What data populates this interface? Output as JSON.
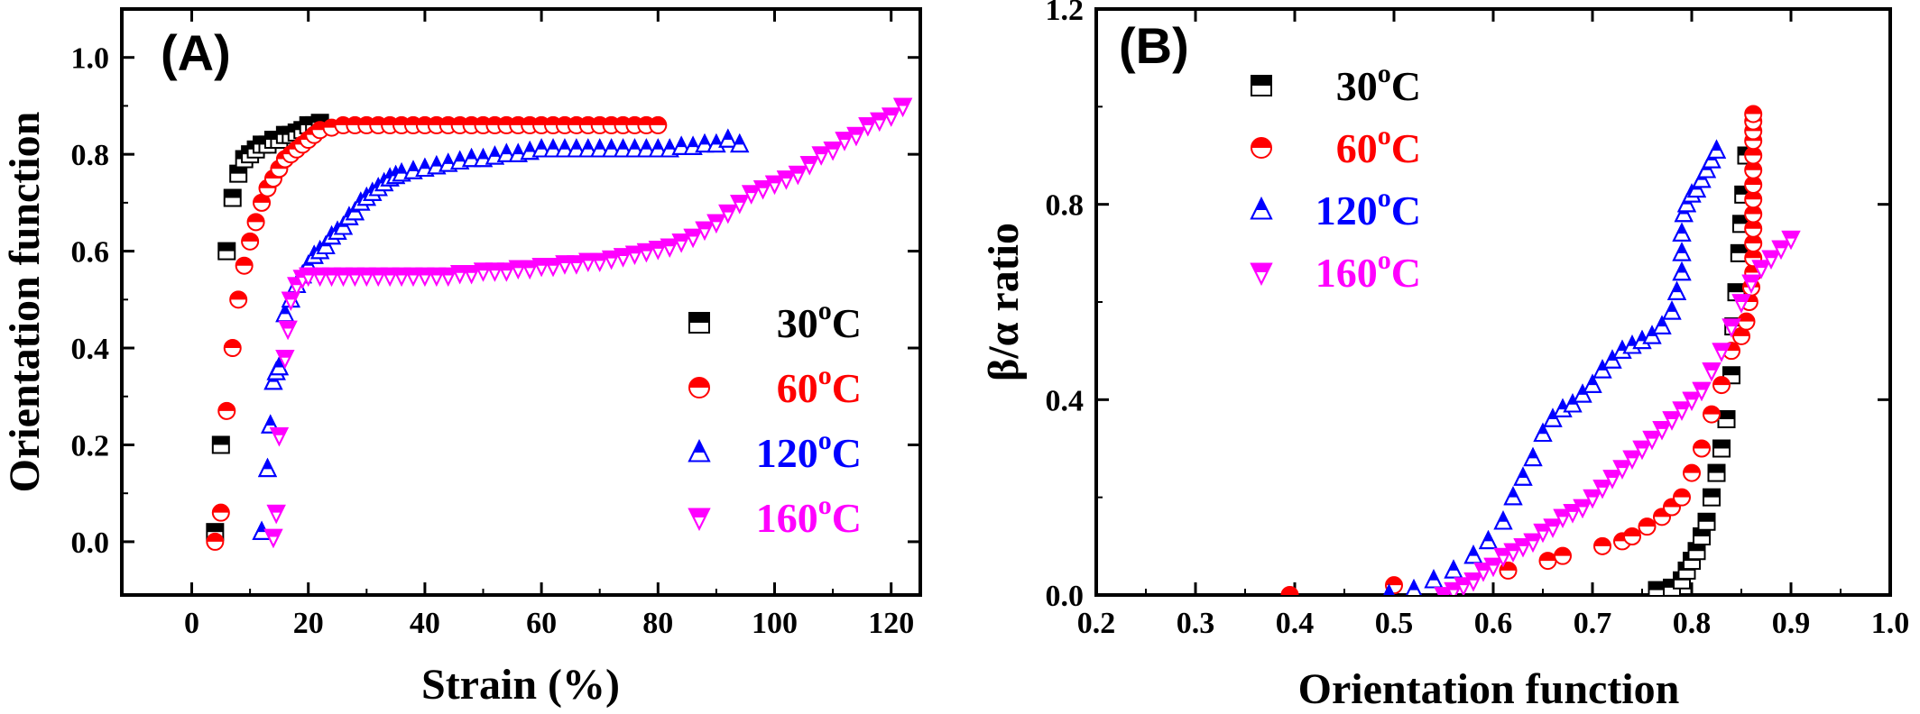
{
  "chart_data": [
    {
      "type": "scatter",
      "panel_label": "(A)",
      "xlabel": "Strain (%)",
      "ylabel": "Orientation function",
      "xlim": [
        -12,
        125
      ],
      "ylim": [
        -0.11,
        1.1
      ],
      "xticks": [
        0,
        20,
        40,
        60,
        80,
        100,
        120
      ],
      "yticks": [
        0.0,
        0.2,
        0.4,
        0.6,
        0.8,
        1.0
      ],
      "xtick_labels": [
        "0",
        "20",
        "40",
        "60",
        "80",
        "100",
        "120"
      ],
      "ytick_labels": [
        "0.0",
        "0.2",
        "0.4",
        "0.6",
        "0.8",
        "1.0"
      ],
      "legend": "right-middle",
      "series": [
        {
          "name": "30°C",
          "legend_temp": "30",
          "legend_unit": "C",
          "marker": "square-half-top",
          "color": "#000000",
          "x": [
            4,
            5,
            6,
            7,
            8,
            9,
            10,
            11,
            12,
            13,
            14,
            15,
            16,
            17,
            18,
            19,
            20,
            21,
            22
          ],
          "y": [
            0.02,
            0.2,
            0.6,
            0.71,
            0.76,
            0.79,
            0.8,
            0.81,
            0.82,
            0.82,
            0.83,
            0.83,
            0.84,
            0.84,
            0.845,
            0.85,
            0.86,
            0.86,
            0.865
          ]
        },
        {
          "name": "60°C",
          "legend_temp": "60",
          "legend_unit": "C",
          "marker": "circle-half-top",
          "color": "#ff0000",
          "x": [
            4,
            5,
            6,
            7,
            8,
            9,
            10,
            11,
            12,
            13,
            14,
            15,
            16,
            17,
            18,
            19,
            20,
            21,
            22,
            24,
            26,
            28,
            30,
            32,
            34,
            36,
            38,
            40,
            42,
            44,
            46,
            48,
            50,
            52,
            54,
            56,
            58,
            60,
            62,
            64,
            66,
            68,
            70,
            72,
            74,
            76,
            78,
            80
          ],
          "y": [
            0.0,
            0.06,
            0.27,
            0.4,
            0.5,
            0.57,
            0.62,
            0.66,
            0.7,
            0.73,
            0.75,
            0.77,
            0.79,
            0.8,
            0.81,
            0.82,
            0.83,
            0.84,
            0.85,
            0.855,
            0.86,
            0.86,
            0.86,
            0.86,
            0.86,
            0.86,
            0.86,
            0.86,
            0.86,
            0.86,
            0.86,
            0.86,
            0.86,
            0.86,
            0.86,
            0.86,
            0.86,
            0.86,
            0.86,
            0.86,
            0.86,
            0.86,
            0.86,
            0.86,
            0.86,
            0.86,
            0.86,
            0.86
          ]
        },
        {
          "name": "120°C",
          "legend_temp": "120",
          "legend_unit": "C",
          "marker": "triangle-up-half",
          "color": "#0000ff",
          "x": [
            12,
            13,
            13.5,
            14,
            14.5,
            15,
            16,
            17,
            18,
            19,
            20,
            21,
            22,
            23,
            24,
            25,
            26,
            27,
            28,
            29,
            30,
            31,
            32,
            33,
            34,
            35,
            36,
            38,
            40,
            42,
            44,
            46,
            48,
            50,
            52,
            54,
            56,
            58,
            60,
            62,
            64,
            66,
            68,
            70,
            72,
            74,
            76,
            78,
            80,
            82,
            84,
            86,
            88,
            90,
            92,
            94
          ],
          "y": [
            0.02,
            0.15,
            0.24,
            0.33,
            0.35,
            0.36,
            0.47,
            0.5,
            0.53,
            0.55,
            0.57,
            0.59,
            0.6,
            0.61,
            0.63,
            0.64,
            0.65,
            0.67,
            0.68,
            0.7,
            0.71,
            0.72,
            0.73,
            0.74,
            0.75,
            0.755,
            0.76,
            0.765,
            0.77,
            0.775,
            0.78,
            0.785,
            0.79,
            0.79,
            0.795,
            0.8,
            0.8,
            0.805,
            0.81,
            0.81,
            0.81,
            0.81,
            0.81,
            0.81,
            0.81,
            0.81,
            0.81,
            0.81,
            0.81,
            0.81,
            0.815,
            0.815,
            0.82,
            0.82,
            0.83,
            0.82
          ]
        },
        {
          "name": "160°C",
          "legend_temp": "160",
          "legend_unit": "C",
          "marker": "triangle-down-half",
          "color": "#ff00ff",
          "x": [
            14,
            14.5,
            15,
            16,
            16.5,
            17,
            18,
            19,
            20,
            22,
            24,
            26,
            28,
            30,
            32,
            34,
            36,
            38,
            40,
            42,
            44,
            46,
            48,
            50,
            52,
            54,
            56,
            58,
            60,
            62,
            64,
            66,
            68,
            70,
            72,
            74,
            76,
            78,
            80,
            82,
            84,
            86,
            88,
            90,
            92,
            94,
            96,
            98,
            100,
            102,
            104,
            106,
            108,
            110,
            112,
            114,
            116,
            118,
            120,
            122
          ],
          "y": [
            0.01,
            0.06,
            0.22,
            0.38,
            0.44,
            0.5,
            0.53,
            0.545,
            0.55,
            0.55,
            0.55,
            0.55,
            0.55,
            0.55,
            0.55,
            0.55,
            0.55,
            0.55,
            0.55,
            0.55,
            0.55,
            0.555,
            0.555,
            0.56,
            0.56,
            0.56,
            0.565,
            0.565,
            0.57,
            0.57,
            0.575,
            0.575,
            0.58,
            0.58,
            0.585,
            0.59,
            0.595,
            0.6,
            0.605,
            0.61,
            0.62,
            0.63,
            0.645,
            0.66,
            0.68,
            0.7,
            0.72,
            0.73,
            0.74,
            0.75,
            0.76,
            0.78,
            0.8,
            0.81,
            0.83,
            0.84,
            0.86,
            0.87,
            0.88,
            0.9
          ]
        }
      ]
    },
    {
      "type": "scatter",
      "panel_label": "(B)",
      "xlabel": "Orientation function",
      "ylabel": "β/α ratio",
      "xlim": [
        0.2,
        1.0
      ],
      "ylim": [
        0.0,
        1.2
      ],
      "xticks": [
        0.2,
        0.3,
        0.4,
        0.5,
        0.6,
        0.7,
        0.8,
        0.9,
        1.0
      ],
      "yticks": [
        0.0,
        0.4,
        0.8,
        1.2
      ],
      "xtick_labels": [
        "0.2",
        "0.3",
        "0.4",
        "0.5",
        "0.6",
        "0.7",
        "0.8",
        "0.9",
        "1.0"
      ],
      "ytick_labels": [
        "0.0",
        "0.4",
        "0.8",
        "1.2"
      ],
      "legend": "top-left",
      "series": [
        {
          "name": "30°C",
          "legend_temp": "30",
          "legend_unit": "C",
          "marker": "square-half-top",
          "color": "#000000",
          "x": [
            0.765,
            0.78,
            0.79,
            0.795,
            0.8,
            0.805,
            0.81,
            0.815,
            0.82,
            0.825,
            0.83,
            0.835,
            0.84,
            0.842,
            0.845,
            0.848,
            0.85,
            0.852,
            0.855
          ],
          "y": [
            0.01,
            0.015,
            0.03,
            0.05,
            0.07,
            0.09,
            0.12,
            0.15,
            0.2,
            0.25,
            0.3,
            0.36,
            0.45,
            0.55,
            0.62,
            0.7,
            0.76,
            0.82,
            0.9
          ]
        },
        {
          "name": "60°C",
          "legend_temp": "60",
          "legend_unit": "C",
          "marker": "circle-half-top",
          "color": "#ff0000",
          "x": [
            0.395,
            0.5,
            0.615,
            0.655,
            0.67,
            0.71,
            0.73,
            0.74,
            0.755,
            0.77,
            0.78,
            0.79,
            0.8,
            0.81,
            0.82,
            0.83,
            0.84,
            0.85,
            0.855,
            0.858,
            0.86,
            0.862,
            0.862,
            0.862,
            0.862,
            0.862,
            0.862,
            0.862,
            0.862,
            0.862,
            0.862,
            0.862,
            0.862,
            0.862
          ],
          "y": [
            0.0,
            0.02,
            0.05,
            0.07,
            0.08,
            0.1,
            0.11,
            0.12,
            0.14,
            0.16,
            0.18,
            0.2,
            0.25,
            0.3,
            0.37,
            0.43,
            0.5,
            0.53,
            0.56,
            0.6,
            0.63,
            0.66,
            0.69,
            0.72,
            0.75,
            0.78,
            0.81,
            0.84,
            0.87,
            0.9,
            0.93,
            0.95,
            0.97,
            0.985
          ]
        },
        {
          "name": "120°C",
          "legend_temp": "120",
          "legend_unit": "C",
          "marker": "triangle-up-half",
          "color": "#0000ff",
          "x": [
            0.495,
            0.52,
            0.54,
            0.56,
            0.58,
            0.595,
            0.61,
            0.62,
            0.63,
            0.64,
            0.65,
            0.66,
            0.67,
            0.68,
            0.69,
            0.7,
            0.71,
            0.72,
            0.73,
            0.74,
            0.75,
            0.76,
            0.77,
            0.78,
            0.785,
            0.79,
            0.79,
            0.79,
            0.792,
            0.795,
            0.8,
            0.805,
            0.81,
            0.815,
            0.82,
            0.825
          ],
          "y": [
            0.0,
            0.01,
            0.03,
            0.05,
            0.08,
            0.11,
            0.15,
            0.2,
            0.24,
            0.28,
            0.33,
            0.36,
            0.38,
            0.39,
            0.41,
            0.43,
            0.46,
            0.48,
            0.5,
            0.51,
            0.52,
            0.53,
            0.55,
            0.58,
            0.62,
            0.66,
            0.7,
            0.74,
            0.78,
            0.8,
            0.82,
            0.83,
            0.85,
            0.87,
            0.89,
            0.91
          ]
        },
        {
          "name": "160°C",
          "legend_temp": "160",
          "legend_unit": "C",
          "marker": "triangle-down-half",
          "color": "#ff00ff",
          "x": [
            0.55,
            0.56,
            0.57,
            0.58,
            0.59,
            0.6,
            0.61,
            0.62,
            0.63,
            0.64,
            0.65,
            0.66,
            0.67,
            0.68,
            0.69,
            0.7,
            0.71,
            0.72,
            0.73,
            0.74,
            0.75,
            0.76,
            0.77,
            0.78,
            0.79,
            0.8,
            0.81,
            0.82,
            0.83,
            0.84,
            0.85,
            0.86,
            0.87,
            0.88,
            0.89,
            0.9
          ],
          "y": [
            0.0,
            0.01,
            0.02,
            0.03,
            0.05,
            0.06,
            0.08,
            0.09,
            0.1,
            0.11,
            0.13,
            0.14,
            0.16,
            0.17,
            0.18,
            0.2,
            0.22,
            0.24,
            0.26,
            0.28,
            0.3,
            0.32,
            0.34,
            0.36,
            0.38,
            0.4,
            0.42,
            0.46,
            0.5,
            0.55,
            0.6,
            0.64,
            0.67,
            0.69,
            0.71,
            0.73
          ]
        }
      ]
    }
  ]
}
